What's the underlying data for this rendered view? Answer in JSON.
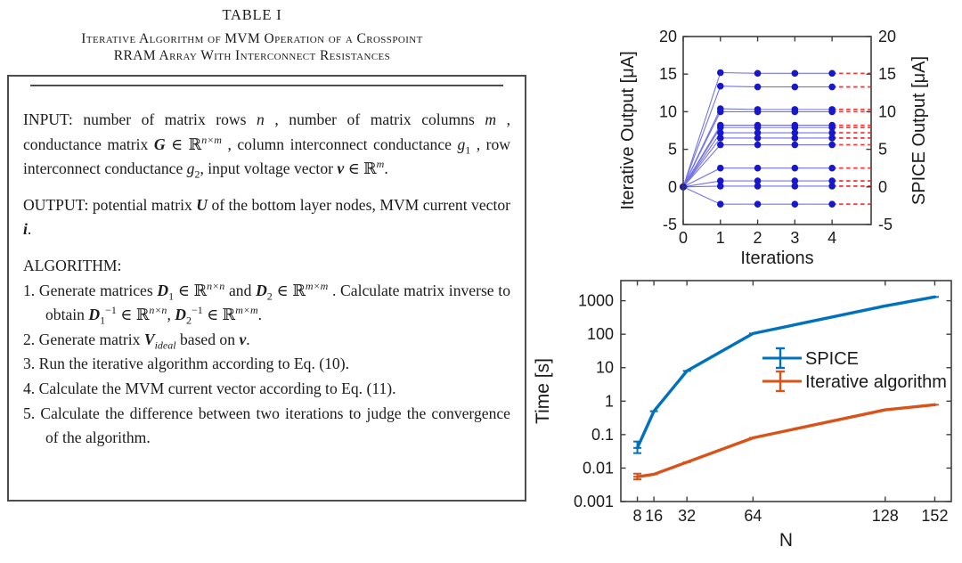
{
  "figure": {
    "table": {
      "title": "TABLE I",
      "subtitle_lines": [
        "Iterative Algorithm of MVM Operation of a Crosspoint",
        "RRAM Array With Interconnect Resistances"
      ],
      "input_paragraph": {
        "runs": [
          {
            "t": "INPUT: number of matrix rows "
          },
          {
            "t": "n",
            "s": "i"
          },
          {
            "t": " , number of matrix columns "
          },
          {
            "t": "m",
            "s": "i"
          },
          {
            "t": " , conductance matrix "
          },
          {
            "t": "G",
            "s": "bi"
          },
          {
            "t": " ∈ ℝ"
          },
          {
            "t": "n×m",
            "s": "supi"
          },
          {
            "t": " , column interconnect conductance "
          },
          {
            "t": "g",
            "s": "i"
          },
          {
            "t": "1",
            "s": "sub"
          },
          {
            "t": " , row interconnect conductance "
          },
          {
            "t": "g",
            "s": "i"
          },
          {
            "t": "2",
            "s": "sub"
          },
          {
            "t": ", input voltage vector "
          },
          {
            "t": "v",
            "s": "bi"
          },
          {
            "t": " ∈ ℝ"
          },
          {
            "t": "m",
            "s": "supi"
          },
          {
            "t": "."
          }
        ]
      },
      "output_paragraph": {
        "runs": [
          {
            "t": "OUTPUT: potential matrix "
          },
          {
            "t": "U",
            "s": "bi"
          },
          {
            "t": " of the bottom layer nodes, MVM current vector "
          },
          {
            "t": "i",
            "s": "bi"
          },
          {
            "t": "."
          }
        ]
      },
      "algorithm_heading": "ALGORITHM:",
      "steps": [
        {
          "num": "1.",
          "runs": [
            {
              "t": "Generate matrices "
            },
            {
              "t": "D",
              "s": "bi"
            },
            {
              "t": "1",
              "s": "sub"
            },
            {
              "t": " ∈ ℝ"
            },
            {
              "t": "n×n",
              "s": "supi"
            },
            {
              "t": " and "
            },
            {
              "t": "D",
              "s": "bi"
            },
            {
              "t": "2",
              "s": "sub"
            },
            {
              "t": " ∈ ℝ"
            },
            {
              "t": "m×m",
              "s": "supi"
            },
            {
              "t": " . Calculate matrix inverse to obtain "
            },
            {
              "t": "D",
              "s": "bi"
            },
            {
              "t": "1",
              "s": "sub"
            },
            {
              "t": "−1",
              "s": "sup"
            },
            {
              "t": " ∈ ℝ"
            },
            {
              "t": "n×n",
              "s": "supi"
            },
            {
              "t": ", "
            },
            {
              "t": "D",
              "s": "bi"
            },
            {
              "t": "2",
              "s": "sub"
            },
            {
              "t": "−1",
              "s": "sup"
            },
            {
              "t": " ∈ ℝ"
            },
            {
              "t": "m×m",
              "s": "supi"
            },
            {
              "t": "."
            }
          ]
        },
        {
          "num": "2.",
          "runs": [
            {
              "t": "Generate matrix "
            },
            {
              "t": "V",
              "s": "bi"
            },
            {
              "t": "ideal",
              "s": "subi"
            },
            {
              "t": " based on "
            },
            {
              "t": "v",
              "s": "bi"
            },
            {
              "t": "."
            }
          ]
        },
        {
          "num": "3.",
          "runs": [
            {
              "t": "Run the iterative algorithm according to Eq. (10)."
            }
          ]
        },
        {
          "num": "4.",
          "runs": [
            {
              "t": "Calculate the MVM current vector according to Eq. (11)."
            }
          ]
        },
        {
          "num": "5.",
          "runs": [
            {
              "t": "Calculate the difference between two iterations to judge the convergence of the algorithm."
            }
          ]
        }
      ]
    }
  },
  "chart_data": [
    {
      "type": "line",
      "title": "",
      "xlabel": "Iterations",
      "ylabel_left": "Iterative Output [μA]",
      "ylabel_right": "SPICE Output [μA]",
      "xlim": [
        0,
        5.05
      ],
      "ylim": [
        -5,
        20
      ],
      "xtick_values": [
        0,
        1,
        2,
        3,
        4
      ],
      "xtick_labels": [
        "0",
        "1",
        "2",
        "3",
        "4"
      ],
      "ytick_values": [
        -5,
        0,
        5,
        10,
        15,
        20
      ],
      "ytick_labels": [
        "-5",
        "0",
        "5",
        "10",
        "15",
        "20"
      ],
      "x": [
        0,
        1,
        2,
        3,
        4
      ],
      "iterative_series": [
        [
          0,
          15.2,
          15.1,
          15.1,
          15.1
        ],
        [
          0,
          13.4,
          13.3,
          13.3,
          13.3
        ],
        [
          0,
          10.4,
          10.3,
          10.3,
          10.3
        ],
        [
          0,
          10.0,
          10.0,
          10.0,
          10.0
        ],
        [
          0,
          8.2,
          8.2,
          8.2,
          8.2
        ],
        [
          0,
          7.9,
          7.9,
          7.9,
          7.9
        ],
        [
          0,
          7.2,
          7.2,
          7.2,
          7.2
        ],
        [
          0,
          6.5,
          6.5,
          6.5,
          6.5
        ],
        [
          0,
          5.6,
          5.6,
          5.6,
          5.6
        ],
        [
          0,
          2.5,
          2.5,
          2.5,
          2.5
        ],
        [
          0,
          0.8,
          0.8,
          0.8,
          0.8
        ],
        [
          0,
          0.1,
          0.1,
          0.1,
          0.1
        ],
        [
          0,
          -2.3,
          -2.3,
          -2.3,
          -2.3
        ]
      ],
      "spice_levels": [
        15.1,
        13.3,
        10.3,
        10.0,
        8.2,
        7.9,
        7.2,
        6.5,
        5.6,
        2.5,
        0.8,
        0.1,
        -2.3
      ],
      "line_color": "#7373e8",
      "marker_color": "#1717cd",
      "spice_dash_color": "#f04040",
      "grid": false
    },
    {
      "type": "line",
      "yscale": "log",
      "xlabel": "N",
      "ylabel": "Time [s]",
      "xlim": [
        0,
        160
      ],
      "ylim": [
        0.001,
        4000
      ],
      "xtick_values": [
        8,
        16,
        32,
        64,
        128,
        152
      ],
      "xtick_labels": [
        "8",
        "16",
        "32",
        "64",
        "128",
        "152"
      ],
      "ytick_values": [
        0.001,
        0.01,
        0.1,
        1,
        10,
        100,
        1000
      ],
      "ytick_labels": [
        "0.001",
        "0.01",
        "0.1",
        "1",
        "10",
        "100",
        "1000"
      ],
      "x": [
        8,
        16,
        32,
        64,
        128,
        152
      ],
      "series": [
        {
          "name": "SPICE",
          "color": "#0072BD",
          "values": [
            0.04,
            0.5,
            8,
            105,
            700,
            1300
          ],
          "yerr": [
            [
              0.028,
              0.062
            ],
            null,
            null,
            null,
            null,
            null
          ]
        },
        {
          "name": "Iterative algorithm",
          "color": "#D95319",
          "values": [
            0.0055,
            0.0065,
            0.015,
            0.08,
            0.55,
            0.78
          ],
          "yerr": [
            [
              0.0046,
              0.0068
            ],
            null,
            null,
            null,
            null,
            null
          ]
        }
      ],
      "legend_position": "center-right",
      "grid": false
    }
  ]
}
